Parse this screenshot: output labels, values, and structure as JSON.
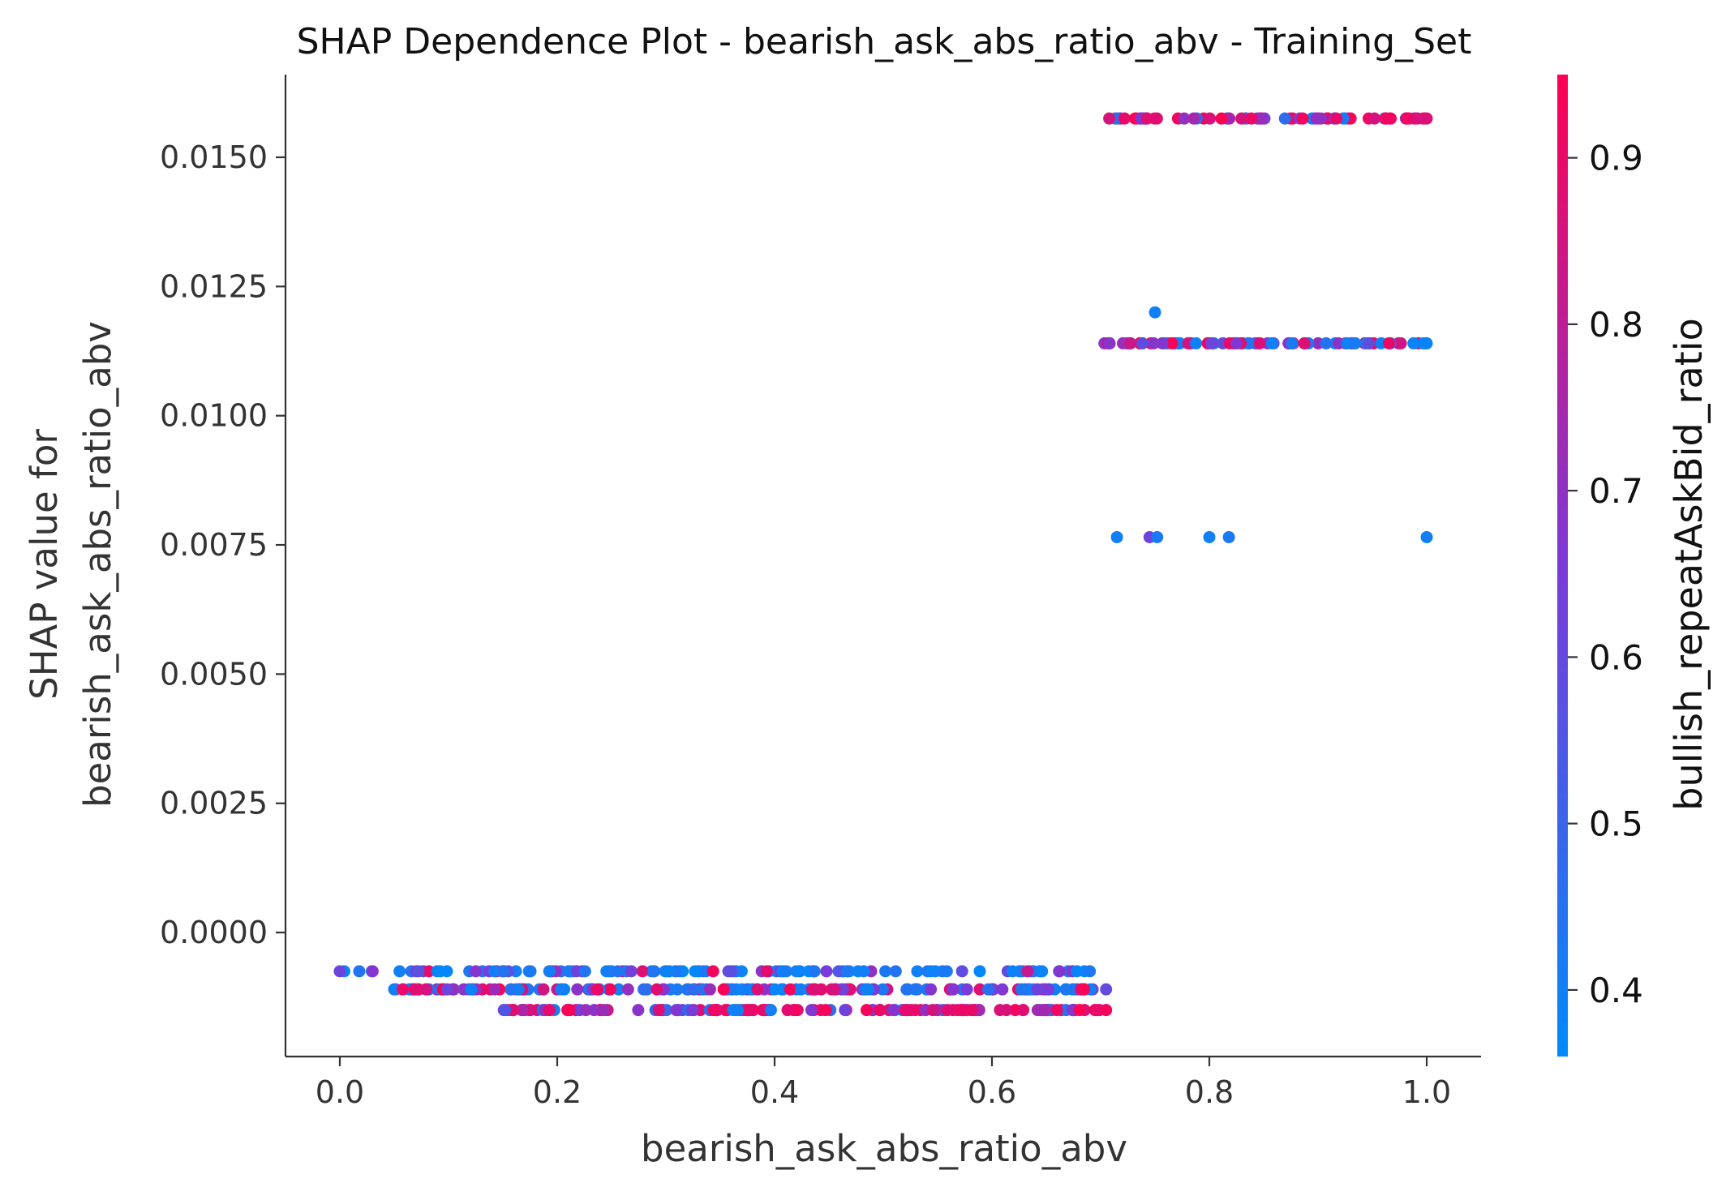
{
  "chart_data": {
    "type": "scatter",
    "title": "SHAP Dependence Plot - bearish_ask_abs_ratio_abv - Training_Set",
    "xlabel": "bearish_ask_abs_ratio_abv",
    "ylabel_lines": [
      "SHAP value for",
      "bearish_ask_abs_ratio_abv"
    ],
    "xlim": [
      -0.05,
      1.05
    ],
    "ylim": [
      -0.0024,
      0.0166
    ],
    "x_ticks": [
      "0.0",
      "0.2",
      "0.4",
      "0.6",
      "0.8",
      "1.0"
    ],
    "y_ticks": [
      "0.0000",
      "0.0025",
      "0.0050",
      "0.0075",
      "0.0100",
      "0.0125",
      "0.0150"
    ],
    "colorbar": {
      "label": "bullish_repeatAskBid_ratio",
      "range": [
        0.36,
        0.95
      ],
      "ticks": [
        "0.4",
        "0.5",
        "0.6",
        "0.7",
        "0.8",
        "0.9"
      ],
      "colormap": [
        "#008afb",
        "#7c3ad7",
        "#ff0052"
      ]
    },
    "grid": false,
    "clusters": [
      {
        "y": -0.00075,
        "x_range": [
          0.0,
          0.69
        ],
        "color_bias": "blue"
      },
      {
        "y": -0.0011,
        "x_range": [
          0.05,
          0.705
        ],
        "color_bias": "mixed"
      },
      {
        "y": -0.0015,
        "x_range": [
          0.15,
          0.705
        ],
        "color_bias": "red"
      },
      {
        "y": 0.01575,
        "x_range": [
          0.7,
          1.0
        ],
        "color_bias": "red"
      },
      {
        "y": 0.0114,
        "x_range": [
          0.7,
          1.0
        ],
        "color_bias": "mixed"
      }
    ],
    "points": [
      {
        "x": 0.0,
        "y": -0.00075,
        "c": 0.62
      },
      {
        "x": 0.05,
        "y": -0.0011,
        "c": 0.4
      },
      {
        "x": 0.058,
        "y": -0.0011,
        "c": 0.9
      },
      {
        "x": 0.055,
        "y": -0.00075,
        "c": 0.4
      },
      {
        "x": 0.152,
        "y": -0.0015,
        "c": 0.55
      },
      {
        "x": 0.75,
        "y": 0.012,
        "c": 0.4
      },
      {
        "x": 0.715,
        "y": 0.00765,
        "c": 0.4
      },
      {
        "x": 0.745,
        "y": 0.00765,
        "c": 0.62
      },
      {
        "x": 0.752,
        "y": 0.00765,
        "c": 0.42
      },
      {
        "x": 0.8,
        "y": 0.00765,
        "c": 0.4
      },
      {
        "x": 0.818,
        "y": 0.00765,
        "c": 0.42
      },
      {
        "x": 1.0,
        "y": 0.00765,
        "c": 0.4
      }
    ]
  }
}
